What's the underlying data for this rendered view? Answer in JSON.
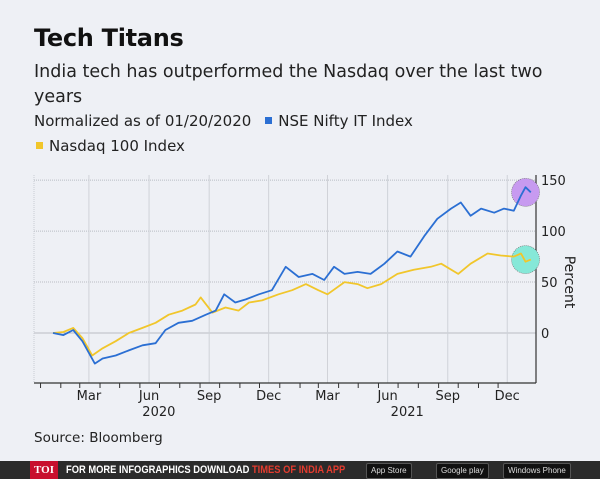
{
  "title": "Tech Titans",
  "subtitle": "India tech has outperformed the Nasdaq over the last two years",
  "note": "Normalized as of 01/20/2020",
  "source": "Source: Bloomberg",
  "banner": {
    "logo": "TOI",
    "text": "FOR MORE  INFOGRAPHICS DOWNLOAD",
    "app": "TIMES OF INDIA  APP",
    "stores": [
      "App Store",
      "Google play",
      "Windows Phone"
    ]
  },
  "colors": {
    "nifty": "#2b6fd3",
    "nasdaq": "#f1c62b",
    "highlight_nifty": "#c79af0",
    "highlight_nasdaq": "#86e8d8"
  },
  "chart_data": {
    "type": "line",
    "ylabel": "Percent",
    "ylim": [
      -50,
      155
    ],
    "yticks": [
      0,
      50,
      100,
      150
    ],
    "xticks": [
      {
        "label": "Mar",
        "date": "2020-03-15"
      },
      {
        "label": "Jun",
        "date": "2020-06-15"
      },
      {
        "label": "Sep",
        "date": "2020-09-15"
      },
      {
        "label": "Dec",
        "date": "2020-12-15"
      },
      {
        "label": "Mar",
        "date": "2021-03-15"
      },
      {
        "label": "Jun",
        "date": "2021-06-15"
      },
      {
        "label": "Sep",
        "date": "2021-09-15"
      },
      {
        "label": "Dec",
        "date": "2021-12-15"
      }
    ],
    "year_labels": [
      {
        "label": "2020",
        "date": "2020-06-30"
      },
      {
        "label": "2021",
        "date": "2021-07-15"
      }
    ],
    "grid": true,
    "legend": "top-left",
    "series": [
      {
        "name": "NSE Nifty IT Index",
        "points": [
          [
            "2020-01-20",
            0
          ],
          [
            "2020-02-05",
            -2
          ],
          [
            "2020-02-20",
            3
          ],
          [
            "2020-03-05",
            -8
          ],
          [
            "2020-03-24",
            -30
          ],
          [
            "2020-04-05",
            -25
          ],
          [
            "2020-04-25",
            -22
          ],
          [
            "2020-05-15",
            -17
          ],
          [
            "2020-06-05",
            -12
          ],
          [
            "2020-06-25",
            -10
          ],
          [
            "2020-07-10",
            3
          ],
          [
            "2020-07-30",
            10
          ],
          [
            "2020-08-20",
            12
          ],
          [
            "2020-09-10",
            18
          ],
          [
            "2020-09-25",
            22
          ],
          [
            "2020-10-08",
            38
          ],
          [
            "2020-10-25",
            30
          ],
          [
            "2020-11-10",
            33
          ],
          [
            "2020-11-30",
            38
          ],
          [
            "2020-12-20",
            42
          ],
          [
            "2021-01-10",
            65
          ],
          [
            "2021-01-30",
            55
          ],
          [
            "2021-02-20",
            58
          ],
          [
            "2021-03-10",
            52
          ],
          [
            "2021-03-25",
            65
          ],
          [
            "2021-04-10",
            58
          ],
          [
            "2021-04-30",
            60
          ],
          [
            "2021-05-20",
            58
          ],
          [
            "2021-06-10",
            68
          ],
          [
            "2021-06-30",
            80
          ],
          [
            "2021-07-20",
            75
          ],
          [
            "2021-08-10",
            95
          ],
          [
            "2021-08-30",
            112
          ],
          [
            "2021-09-20",
            122
          ],
          [
            "2021-10-05",
            128
          ],
          [
            "2021-10-20",
            115
          ],
          [
            "2021-11-05",
            122
          ],
          [
            "2021-11-25",
            118
          ],
          [
            "2021-12-10",
            122
          ],
          [
            "2021-12-25",
            120
          ],
          [
            "2022-01-05",
            135
          ],
          [
            "2022-01-12",
            143
          ],
          [
            "2022-01-20",
            138
          ]
        ]
      },
      {
        "name": "Nasdaq 100 Index",
        "points": [
          [
            "2020-01-20",
            0
          ],
          [
            "2020-02-05",
            1
          ],
          [
            "2020-02-20",
            5
          ],
          [
            "2020-03-05",
            -5
          ],
          [
            "2020-03-20",
            -22
          ],
          [
            "2020-04-05",
            -15
          ],
          [
            "2020-04-25",
            -8
          ],
          [
            "2020-05-15",
            0
          ],
          [
            "2020-06-05",
            5
          ],
          [
            "2020-06-25",
            10
          ],
          [
            "2020-07-15",
            18
          ],
          [
            "2020-08-05",
            22
          ],
          [
            "2020-08-25",
            28
          ],
          [
            "2020-09-02",
            35
          ],
          [
            "2020-09-20",
            20
          ],
          [
            "2020-10-10",
            25
          ],
          [
            "2020-10-30",
            22
          ],
          [
            "2020-11-15",
            30
          ],
          [
            "2020-12-05",
            32
          ],
          [
            "2020-12-30",
            38
          ],
          [
            "2021-01-20",
            42
          ],
          [
            "2021-02-10",
            48
          ],
          [
            "2021-03-01",
            42
          ],
          [
            "2021-03-15",
            38
          ],
          [
            "2021-04-10",
            50
          ],
          [
            "2021-04-30",
            48
          ],
          [
            "2021-05-15",
            44
          ],
          [
            "2021-06-05",
            48
          ],
          [
            "2021-06-30",
            58
          ],
          [
            "2021-07-25",
            62
          ],
          [
            "2021-08-20",
            65
          ],
          [
            "2021-09-05",
            68
          ],
          [
            "2021-10-01",
            58
          ],
          [
            "2021-10-20",
            68
          ],
          [
            "2021-11-15",
            78
          ],
          [
            "2021-12-05",
            76
          ],
          [
            "2021-12-25",
            75
          ],
          [
            "2022-01-05",
            78
          ],
          [
            "2022-01-12",
            70
          ],
          [
            "2022-01-20",
            72
          ]
        ]
      }
    ]
  }
}
